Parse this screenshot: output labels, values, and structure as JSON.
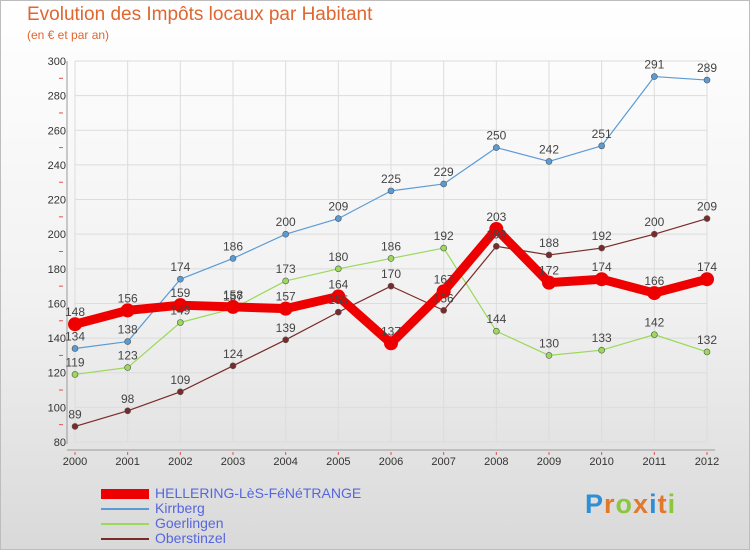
{
  "header": {
    "title": "Evolution des Impôts locaux par Habitant",
    "subtitle": "(en € et par an)"
  },
  "logo": {
    "letters": [
      "P",
      "r",
      "o",
      "x",
      "i",
      "t",
      "i"
    ],
    "colors": [
      "#2f8fd6",
      "#e2782b",
      "#8cc63f",
      "#e2782b",
      "#2f8fd6",
      "#e2782b",
      "#8cc63f"
    ]
  },
  "chart_data": {
    "type": "line",
    "x": [
      2000,
      2001,
      2002,
      2003,
      2004,
      2005,
      2006,
      2007,
      2008,
      2009,
      2010,
      2011,
      2012
    ],
    "ylim": [
      80,
      300
    ],
    "yticks": [
      80,
      100,
      120,
      140,
      160,
      180,
      200,
      220,
      240,
      260,
      280,
      300
    ],
    "grid": true,
    "legend_position": "bottom-left",
    "series": [
      {
        "name": "Kirrberg",
        "color": "#5b9bd5",
        "values": [
          134,
          138,
          174,
          186,
          200,
          209,
          225,
          229,
          250,
          242,
          251,
          291,
          289
        ],
        "labels": [
          "134",
          "138",
          "174",
          "186",
          "200",
          "209",
          "225",
          "229",
          "250",
          "242",
          "251",
          "291",
          "289"
        ]
      },
      {
        "name": "Goerlingen",
        "color": "#9ad95a",
        "values": [
          119,
          123,
          149,
          157,
          173,
          180,
          186,
          192,
          144,
          130,
          133,
          142,
          132
        ],
        "labels": [
          "119",
          "123",
          "149",
          "157",
          "173",
          "180",
          "186",
          "192",
          "144",
          "130",
          "133",
          "142",
          "132"
        ]
      },
      {
        "name": "Oberstinzel",
        "color": "#7a2a2a",
        "values": [
          89,
          98,
          109,
          124,
          139,
          155,
          170,
          156,
          193,
          188,
          192,
          200,
          209
        ],
        "labels": [
          "89",
          "98",
          "109",
          "124",
          "139",
          "155",
          "170",
          "156",
          "193",
          "188",
          "192",
          "200",
          "209"
        ]
      },
      {
        "name": "HELLERING-LèS-FéNéTRANGE",
        "color": "#ee0000",
        "values": [
          148,
          156,
          159,
          158,
          157,
          164,
          137,
          167,
          203,
          172,
          174,
          166,
          174
        ],
        "labels": [
          "148",
          "156",
          "159",
          "158",
          "157",
          "164",
          "137",
          "167",
          "203",
          "172",
          "174",
          "166",
          "174"
        ]
      }
    ]
  }
}
